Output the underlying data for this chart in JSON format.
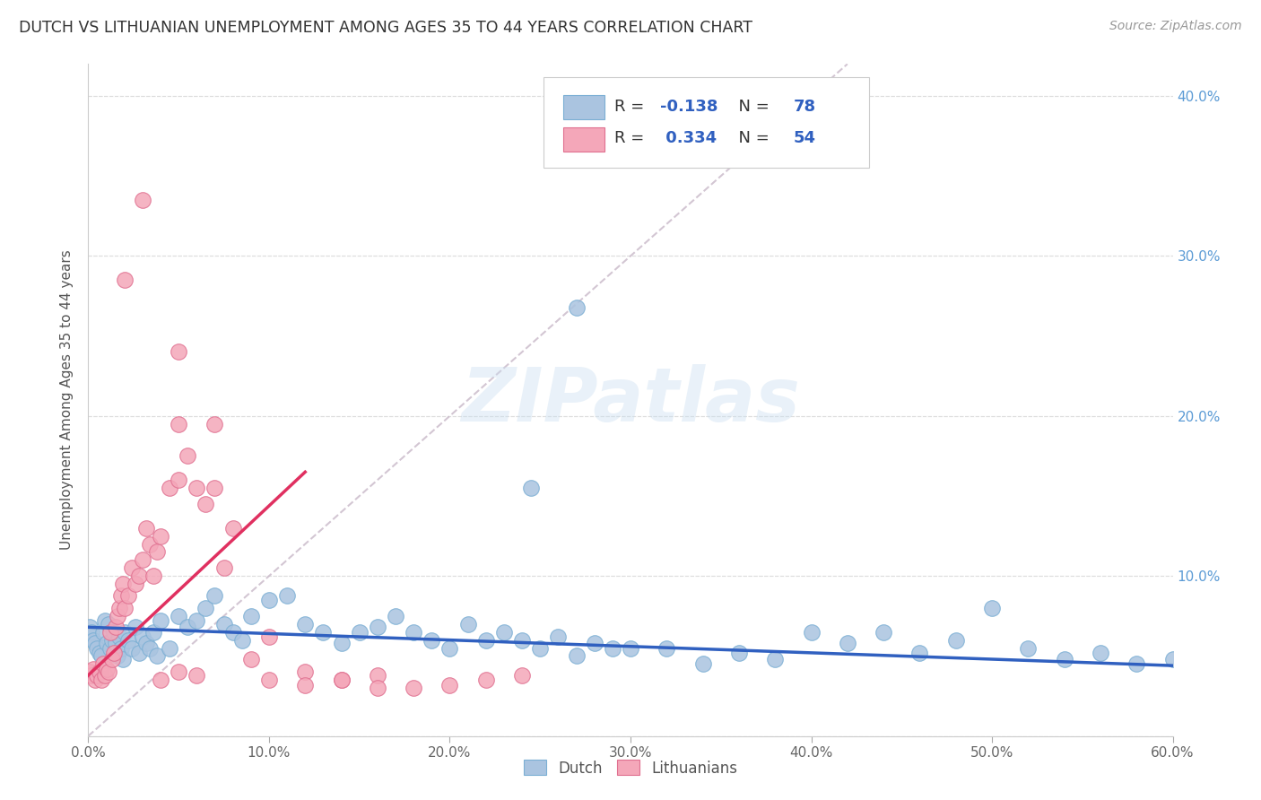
{
  "title": "DUTCH VS LITHUANIAN UNEMPLOYMENT AMONG AGES 35 TO 44 YEARS CORRELATION CHART",
  "source": "Source: ZipAtlas.com",
  "ylabel": "Unemployment Among Ages 35 to 44 years",
  "xlim": [
    0.0,
    0.6
  ],
  "ylim": [
    0.0,
    0.42
  ],
  "xticks": [
    0.0,
    0.1,
    0.2,
    0.3,
    0.4,
    0.5,
    0.6
  ],
  "yticks": [
    0.0,
    0.1,
    0.2,
    0.3,
    0.4
  ],
  "ytick_labels_right": [
    "",
    "10.0%",
    "20.0%",
    "30.0%",
    "40.0%"
  ],
  "xtick_labels": [
    "0.0%",
    "10.0%",
    "20.0%",
    "30.0%",
    "40.0%",
    "50.0%",
    "60.0%"
  ],
  "dutch_color": "#aac4e0",
  "dutch_edge": "#7bafd4",
  "lithuanian_color": "#f4a7b9",
  "lithuanian_edge": "#e07090",
  "dutch_trend_color": "#3060c0",
  "lith_trend_color": "#e03060",
  "ref_line_color": "#c8b8c8",
  "dutch_R": -0.138,
  "dutch_N": 78,
  "lithuanian_R": 0.334,
  "lithuanian_N": 54,
  "watermark": "ZIPatlas",
  "legend_label_dutch": "Dutch",
  "legend_label_lithuanian": "Lithuanians",
  "background_color": "#ffffff",
  "grid_color": "#dddddd",
  "title_color": "#333333",
  "axis_label_color": "#555555",
  "right_tick_color": "#5b9bd5",
  "legend_text_color": "#333333",
  "legend_value_color": "#3060c0"
}
